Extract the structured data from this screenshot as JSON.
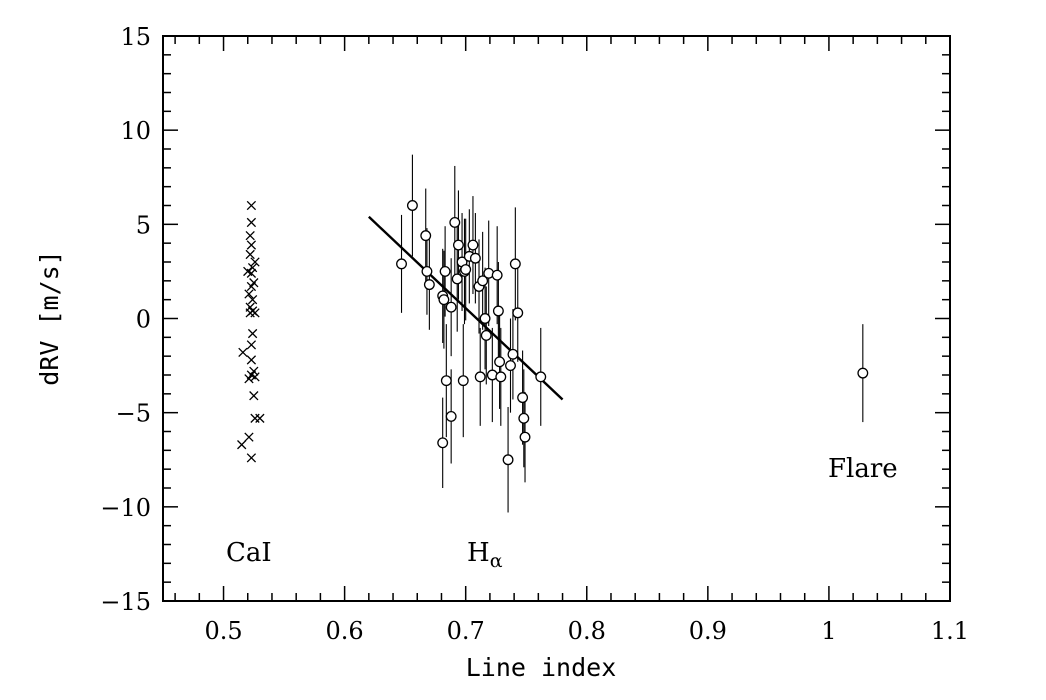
{
  "chart_data": {
    "type": "scatter",
    "xlabel": "Line index",
    "ylabel": "dRV [m/s]",
    "xlim": [
      0.45,
      1.1
    ],
    "ylim": [
      -15,
      15
    ],
    "x_ticks": [
      "0.5",
      "0.6",
      "0.7",
      "0.8",
      "0.9",
      "1",
      "1.1"
    ],
    "y_ticks": [
      "15",
      "10",
      "5",
      "0",
      "−5",
      "−10",
      "−15"
    ],
    "annotations": {
      "cai": "CaI",
      "halpha_main": "H",
      "halpha_sub": "α",
      "flare": "Flare"
    },
    "series": [
      {
        "marker": "cross",
        "points": [
          {
            "x": 0.523,
            "y": 6.0
          },
          {
            "x": 0.523,
            "y": 5.1
          },
          {
            "x": 0.522,
            "y": 4.4
          },
          {
            "x": 0.523,
            "y": 3.9
          },
          {
            "x": 0.522,
            "y": 3.4
          },
          {
            "x": 0.52,
            "y": 2.5
          },
          {
            "x": 0.523,
            "y": 2.4
          },
          {
            "x": 0.526,
            "y": 3.0
          },
          {
            "x": 0.524,
            "y": 2.7
          },
          {
            "x": 0.525,
            "y": 1.9
          },
          {
            "x": 0.523,
            "y": 1.7
          },
          {
            "x": 0.521,
            "y": 1.3
          },
          {
            "x": 0.524,
            "y": 1.0
          },
          {
            "x": 0.522,
            "y": 0.6
          },
          {
            "x": 0.524,
            "y": 0.4
          },
          {
            "x": 0.522,
            "y": 0.3
          },
          {
            "x": 0.526,
            "y": 0.3
          },
          {
            "x": 0.524,
            "y": -0.8
          },
          {
            "x": 0.523,
            "y": -1.4
          },
          {
            "x": 0.516,
            "y": -1.8
          },
          {
            "x": 0.523,
            "y": -2.2
          },
          {
            "x": 0.525,
            "y": -2.8
          },
          {
            "x": 0.523,
            "y": -3.0
          },
          {
            "x": 0.526,
            "y": -3.1
          },
          {
            "x": 0.521,
            "y": -3.2
          },
          {
            "x": 0.525,
            "y": -4.1
          },
          {
            "x": 0.526,
            "y": -5.3
          },
          {
            "x": 0.53,
            "y": -5.3
          },
          {
            "x": 0.521,
            "y": -6.3
          },
          {
            "x": 0.515,
            "y": -6.7
          },
          {
            "x": 0.523,
            "y": -7.4
          }
        ]
      },
      {
        "marker": "circle",
        "points": [
          {
            "x": 0.647,
            "y": 2.9,
            "err": 2.6
          },
          {
            "x": 0.656,
            "y": 6.0,
            "err": 2.7
          },
          {
            "x": 0.667,
            "y": 4.4,
            "err": 2.5
          },
          {
            "x": 0.668,
            "y": 2.5,
            "err": 2.3
          },
          {
            "x": 0.67,
            "y": 1.8,
            "err": 2.4
          },
          {
            "x": 0.681,
            "y": 1.2,
            "err": 2.5
          },
          {
            "x": 0.682,
            "y": 1.0,
            "err": 2.6
          },
          {
            "x": 0.683,
            "y": 2.5,
            "err": 2.4
          },
          {
            "x": 0.684,
            "y": -3.3,
            "err": 3.0
          },
          {
            "x": 0.681,
            "y": -6.6,
            "err": 2.4
          },
          {
            "x": 0.688,
            "y": 0.6,
            "err": 2.6
          },
          {
            "x": 0.688,
            "y": -5.2,
            "err": 2.5
          },
          {
            "x": 0.691,
            "y": 5.1,
            "err": 3.0
          },
          {
            "x": 0.693,
            "y": 2.1,
            "err": 2.8
          },
          {
            "x": 0.694,
            "y": 3.9,
            "err": 2.9
          },
          {
            "x": 0.697,
            "y": 3.0,
            "err": 2.6
          },
          {
            "x": 0.698,
            "y": -3.3,
            "err": 3.0
          },
          {
            "x": 0.699,
            "y": 2.5,
            "err": 2.8
          },
          {
            "x": 0.7,
            "y": 2.6,
            "err": 2.7
          },
          {
            "x": 0.703,
            "y": 3.3,
            "err": 2.5
          },
          {
            "x": 0.706,
            "y": 3.9,
            "err": 2.6
          },
          {
            "x": 0.708,
            "y": 3.2,
            "err": 2.4
          },
          {
            "x": 0.711,
            "y": 1.7,
            "err": 2.5
          },
          {
            "x": 0.712,
            "y": -3.1,
            "err": 2.6
          },
          {
            "x": 0.714,
            "y": 2.0,
            "err": 2.6
          },
          {
            "x": 0.716,
            "y": 0.0,
            "err": 2.7
          },
          {
            "x": 0.717,
            "y": -0.9,
            "err": 2.6
          },
          {
            "x": 0.719,
            "y": 2.4,
            "err": 2.8
          },
          {
            "x": 0.722,
            "y": -3.0,
            "err": 2.5
          },
          {
            "x": 0.726,
            "y": 2.3,
            "err": 2.6
          },
          {
            "x": 0.727,
            "y": 0.4,
            "err": 2.6
          },
          {
            "x": 0.728,
            "y": -2.3,
            "err": 2.5
          },
          {
            "x": 0.729,
            "y": -3.1,
            "err": 2.6
          },
          {
            "x": 0.735,
            "y": -7.5,
            "err": 2.8
          },
          {
            "x": 0.737,
            "y": -2.5,
            "err": 2.5
          },
          {
            "x": 0.739,
            "y": -1.9,
            "err": 2.4
          },
          {
            "x": 0.741,
            "y": 2.9,
            "err": 3.0
          },
          {
            "x": 0.743,
            "y": 0.3,
            "err": 2.6
          },
          {
            "x": 0.747,
            "y": -4.2,
            "err": 2.5
          },
          {
            "x": 0.748,
            "y": -5.3,
            "err": 2.6
          },
          {
            "x": 0.749,
            "y": -6.3,
            "err": 2.4
          },
          {
            "x": 0.762,
            "y": -3.1,
            "err": 2.6
          },
          {
            "x": 1.028,
            "y": -2.9,
            "err": 2.6
          }
        ]
      }
    ],
    "fit_line": {
      "x": [
        0.62,
        0.78
      ],
      "y": [
        5.4,
        -4.3
      ]
    }
  }
}
